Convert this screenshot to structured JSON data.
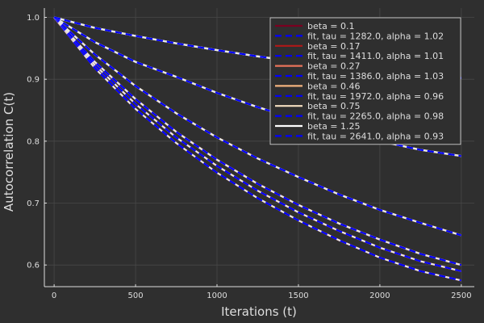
{
  "chart_data": {
    "type": "line",
    "title": "",
    "xlabel": "Iterations (t)",
    "ylabel": "Autocorrelation C(t)",
    "xlim": [
      -60,
      2580
    ],
    "ylim": [
      0.565,
      1.015
    ],
    "xticks": [
      0,
      500,
      1000,
      1500,
      2000,
      2500
    ],
    "xtick_labels": [
      "0",
      "500",
      "1000",
      "1500",
      "2000",
      "2500"
    ],
    "yticks": [
      0.6,
      0.7,
      0.8,
      0.9,
      1.0
    ],
    "ytick_labels": [
      "0.6",
      "0.7",
      "0.8",
      "0.9",
      "1.0"
    ],
    "grid": true,
    "legend_position": "top-right",
    "colors": {
      "background": "#2f2f2f",
      "axis": "#dedede",
      "grid": "#484848",
      "fit": "#0000ff",
      "fit_dash": "#e8e8e8"
    },
    "series": [
      {
        "name": "beta = 0.1",
        "kind": "data",
        "color": "#7a0020",
        "x": [
          0,
          250,
          500,
          750,
          1000,
          1250,
          1500,
          1750,
          2000,
          2250,
          2500
        ],
        "y": [
          1.0,
          0.918,
          0.852,
          0.797,
          0.749,
          0.708,
          0.672,
          0.64,
          0.612,
          0.59,
          0.575
        ]
      },
      {
        "name": "fit, tau = 1282.0, alpha = 1.02",
        "kind": "fit",
        "color": "#0000ff",
        "x": [
          0,
          250,
          500,
          750,
          1000,
          1250,
          1500,
          1750,
          2000,
          2250,
          2500
        ],
        "y": [
          1.0,
          0.918,
          0.852,
          0.797,
          0.749,
          0.708,
          0.672,
          0.64,
          0.612,
          0.59,
          0.575
        ]
      },
      {
        "name": "beta = 0.17",
        "kind": "data",
        "color": "#b01818",
        "x": [
          0,
          250,
          500,
          750,
          1000,
          1250,
          1500,
          1750,
          2000,
          2250,
          2500
        ],
        "y": [
          1.0,
          0.923,
          0.86,
          0.806,
          0.76,
          0.72,
          0.685,
          0.655,
          0.628,
          0.606,
          0.59
        ]
      },
      {
        "name": "fit, tau = 1411.0, alpha = 1.01",
        "kind": "fit",
        "color": "#0000ff",
        "x": [
          0,
          250,
          500,
          750,
          1000,
          1250,
          1500,
          1750,
          2000,
          2250,
          2500
        ],
        "y": [
          1.0,
          0.923,
          0.86,
          0.806,
          0.76,
          0.72,
          0.685,
          0.655,
          0.628,
          0.606,
          0.59
        ]
      },
      {
        "name": "beta = 0.27",
        "kind": "data",
        "color": "#e8735a",
        "x": [
          0,
          250,
          500,
          750,
          1000,
          1250,
          1500,
          1750,
          2000,
          2250,
          2500
        ],
        "y": [
          1.0,
          0.928,
          0.868,
          0.815,
          0.77,
          0.731,
          0.697,
          0.667,
          0.641,
          0.618,
          0.6
        ]
      },
      {
        "name": "fit, tau = 1386.0, alpha = 1.03",
        "kind": "fit",
        "color": "#0000ff",
        "x": [
          0,
          250,
          500,
          750,
          1000,
          1250,
          1500,
          1750,
          2000,
          2250,
          2500
        ],
        "y": [
          1.0,
          0.928,
          0.868,
          0.815,
          0.77,
          0.731,
          0.697,
          0.667,
          0.641,
          0.618,
          0.6
        ]
      },
      {
        "name": "beta = 0.46",
        "kind": "data",
        "color": "#f2b27e",
        "x": [
          0,
          250,
          500,
          750,
          1000,
          1250,
          1500,
          1750,
          2000,
          2250,
          2500
        ],
        "y": [
          1.0,
          0.94,
          0.889,
          0.845,
          0.806,
          0.772,
          0.742,
          0.714,
          0.689,
          0.668,
          0.648
        ]
      },
      {
        "name": "fit, tau = 1972.0, alpha = 0.96",
        "kind": "fit",
        "color": "#0000ff",
        "x": [
          0,
          250,
          500,
          750,
          1000,
          1250,
          1500,
          1750,
          2000,
          2250,
          2500
        ],
        "y": [
          1.0,
          0.94,
          0.889,
          0.845,
          0.806,
          0.772,
          0.742,
          0.714,
          0.689,
          0.668,
          0.648
        ]
      },
      {
        "name": "beta = 0.75",
        "kind": "data",
        "color": "#f6dfc0",
        "x": [
          0,
          250,
          500,
          750,
          1000,
          1250,
          1500,
          1750,
          2000,
          2250,
          2500
        ],
        "y": [
          1.0,
          0.96,
          0.928,
          0.904,
          0.878,
          0.855,
          0.835,
          0.816,
          0.8,
          0.786,
          0.776
        ]
      },
      {
        "name": "fit, tau = 2265.0, alpha = 0.98",
        "kind": "fit",
        "color": "#0000ff",
        "x": [
          0,
          250,
          500,
          750,
          1000,
          1250,
          1500,
          1750,
          2000,
          2250,
          2500
        ],
        "y": [
          1.0,
          0.96,
          0.928,
          0.904,
          0.878,
          0.855,
          0.835,
          0.816,
          0.8,
          0.786,
          0.776
        ]
      },
      {
        "name": "beta = 1.25",
        "kind": "data",
        "color": "#ffffff",
        "x": [
          0,
          250,
          500,
          750,
          1000,
          1250,
          1500,
          1750,
          2000,
          2250,
          2500
        ],
        "y": [
          1.0,
          0.983,
          0.97,
          0.958,
          0.947,
          0.937,
          0.928,
          0.92,
          0.913,
          0.907,
          0.902
        ]
      },
      {
        "name": "fit, tau = 2641.0, alpha = 0.93",
        "kind": "fit",
        "color": "#0000ff",
        "x": [
          0,
          250,
          500,
          750,
          1000,
          1250,
          1500,
          1750,
          2000,
          2250,
          2500
        ],
        "y": [
          1.0,
          0.983,
          0.97,
          0.958,
          0.947,
          0.937,
          0.928,
          0.92,
          0.913,
          0.907,
          0.902
        ]
      }
    ]
  }
}
